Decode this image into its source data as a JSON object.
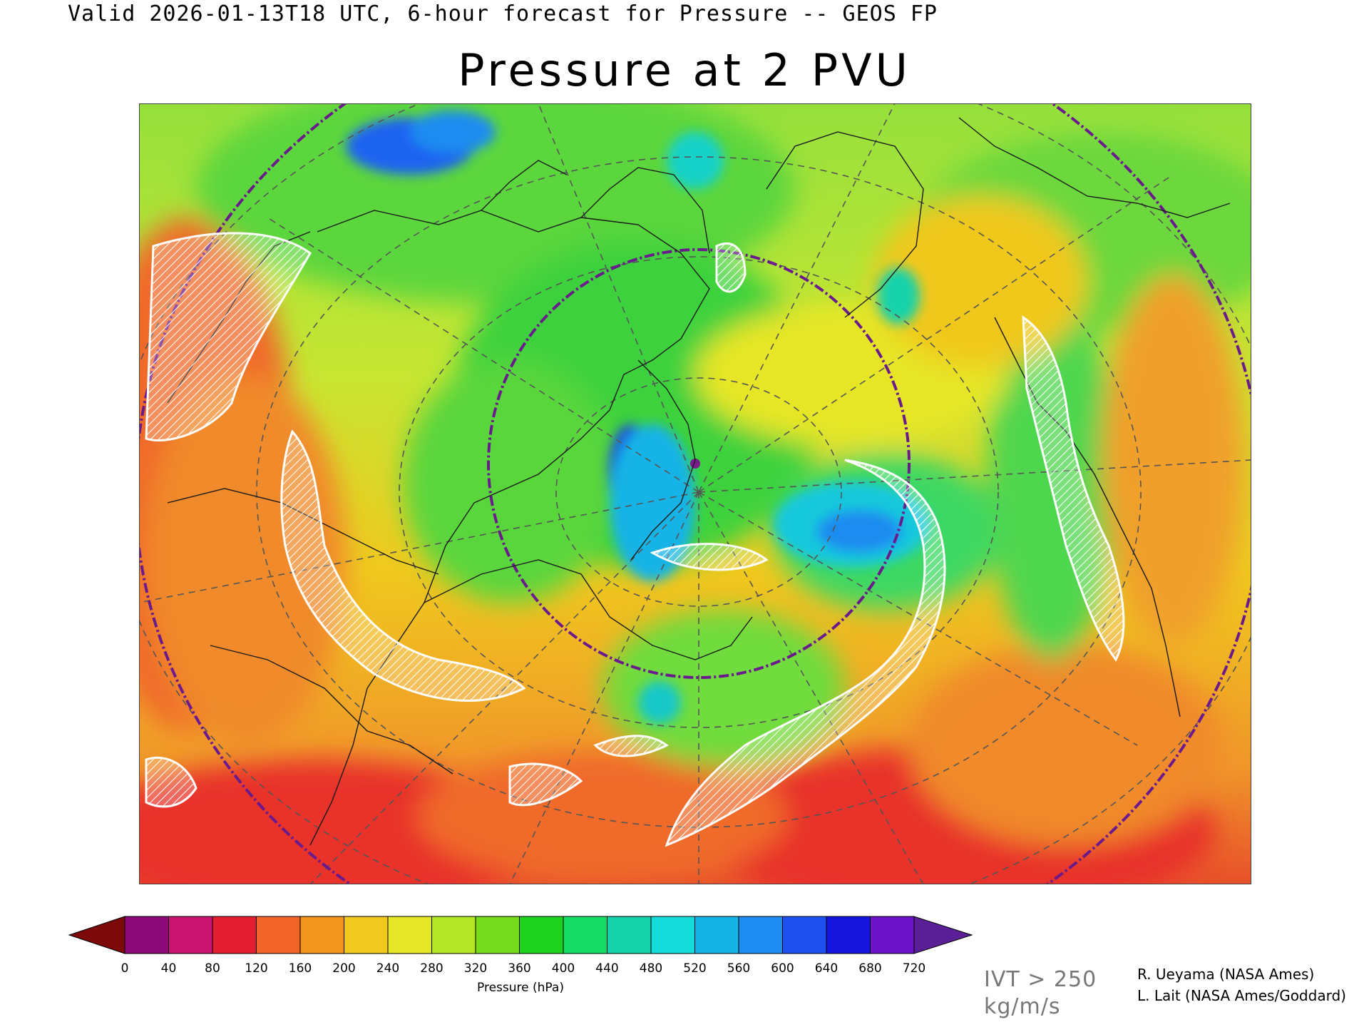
{
  "header": {
    "valid_line": "Valid 2026-01-13T18 UTC, 6-hour forecast for Pressure -- GEOS FP",
    "title": "Pressure at 2 PVU"
  },
  "colorbar": {
    "label": "Pressure (hPa)",
    "ticks": [
      "0",
      "40",
      "80",
      "120",
      "160",
      "200",
      "240",
      "280",
      "320",
      "360",
      "400",
      "440",
      "480",
      "520",
      "560",
      "600",
      "640",
      "680",
      "720"
    ],
    "colors": [
      "#8b0a78",
      "#c8146e",
      "#e41e32",
      "#f0642a",
      "#f0961e",
      "#f0c81e",
      "#e6e628",
      "#b4e628",
      "#78dc1e",
      "#1ed21e",
      "#14dc64",
      "#14d2aa",
      "#14dcdc",
      "#14b4e6",
      "#1e8cf0",
      "#1e50f0",
      "#1414dc",
      "#6e14c8"
    ],
    "under_color": "#7d0a0a",
    "over_color": "#5a1e96"
  },
  "legend": {
    "ivt_line1": "IVT > 250",
    "ivt_line2": "kg/m/s"
  },
  "credits": {
    "line1": "R. Ueyama (NASA Ames)",
    "line2": "L. Lait (NASA Ames/Goddard)"
  },
  "map": {
    "projection": "polar stereographic",
    "center_marker_color": "#7a1a8c",
    "ring_color": "#6a1a8c"
  }
}
